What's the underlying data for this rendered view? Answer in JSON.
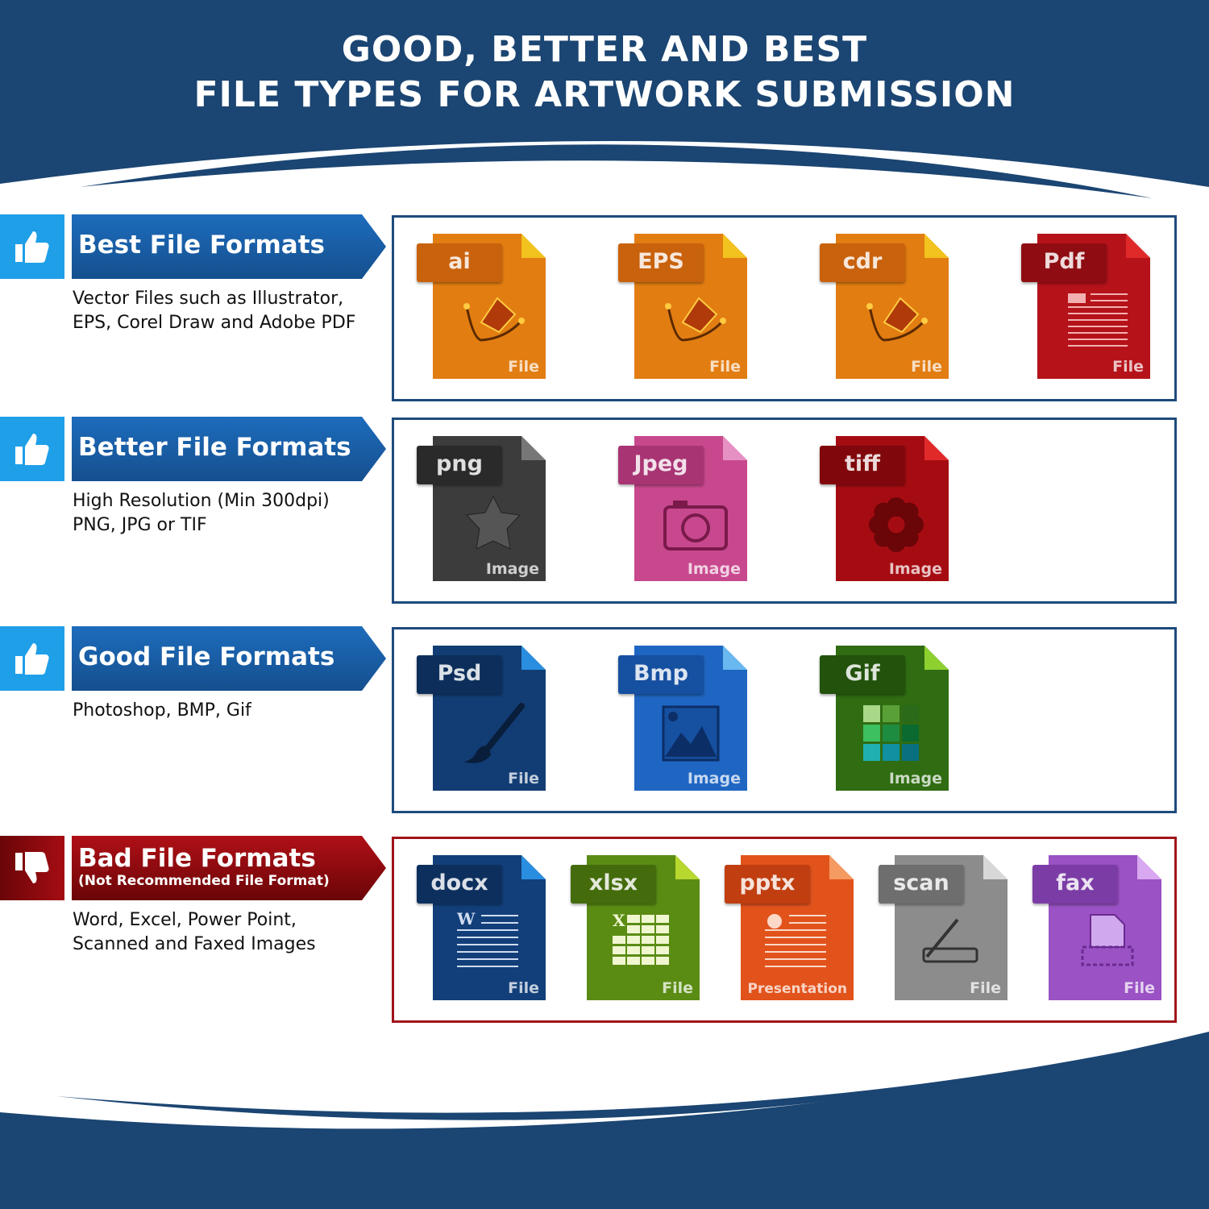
{
  "header": {
    "title_line1": "GOOD, BETTER AND BEST",
    "title_line2": "FILE TYPES FOR ARTWORK SUBMISSION"
  },
  "colors": {
    "navy": "#1b4572",
    "blue_banner": "#1a5fa8",
    "light_blue": "#1e9fe8",
    "red_banner": "#a50d12"
  },
  "sections": [
    {
      "icon": "thumbs-up-icon",
      "title": "Best File Formats",
      "description": [
        "Vector Files such as Illustrator,",
        "EPS, Corel Draw and Adobe PDF"
      ],
      "files": [
        {
          "label": "ai",
          "footer": "File",
          "glyph": "pen",
          "body": "#e27d12",
          "tag": "#c9620c",
          "fold": "#f2c21e"
        },
        {
          "label": "EPS",
          "footer": "File",
          "glyph": "pen",
          "body": "#e27d12",
          "tag": "#c9620c",
          "fold": "#f2c21e"
        },
        {
          "label": "cdr",
          "footer": "File",
          "glyph": "pen",
          "body": "#e27d12",
          "tag": "#c9620c",
          "fold": "#f2c21e"
        },
        {
          "label": "Pdf",
          "footer": "File",
          "glyph": "doc",
          "body": "#b5121a",
          "tag": "#8f0d12",
          "fold": "#e02a2a"
        }
      ]
    },
    {
      "icon": "thumbs-up-icon",
      "title": "Better File Formats",
      "description": [
        "High Resolution (Min 300dpi)",
        "PNG, JPG or TIF"
      ],
      "files": [
        {
          "label": "png",
          "footer": "Image",
          "glyph": "star",
          "body": "#3c3c3c",
          "tag": "#2a2a2a",
          "fold": "#777777"
        },
        {
          "label": "Jpeg",
          "footer": "Image",
          "glyph": "camera",
          "body": "#c8488e",
          "tag": "#a83474",
          "fold": "#e690c4"
        },
        {
          "label": "tiff",
          "footer": "Image",
          "glyph": "flower",
          "body": "#a50c12",
          "tag": "#80080c",
          "fold": "#e02a2a"
        }
      ]
    },
    {
      "icon": "thumbs-up-icon",
      "title": "Good File Formats",
      "description": [
        "Photoshop, BMP, Gif"
      ],
      "files": [
        {
          "label": "Psd",
          "footer": "File",
          "glyph": "brush",
          "body": "#123d74",
          "tag": "#0d2e5a",
          "fold": "#2a8ee0"
        },
        {
          "label": "Bmp",
          "footer": "Image",
          "glyph": "picture",
          "body": "#1f66c2",
          "tag": "#1650a0",
          "fold": "#6ab8f0"
        },
        {
          "label": "Gif",
          "footer": "Image",
          "glyph": "grid",
          "body": "#2f6c12",
          "tag": "#22520c",
          "fold": "#8ed030"
        }
      ]
    },
    {
      "icon": "thumbs-down-icon",
      "title": "Bad File Formats",
      "subtitle": "(Not Recommended File Format)",
      "description": [
        "Word, Excel, Power Point,",
        "Scanned and Faxed Images"
      ],
      "files": [
        {
          "label": "docx",
          "footer": "File",
          "glyph": "word",
          "body": "#123f7a",
          "tag": "#0d2f5e",
          "fold": "#2a8ee0"
        },
        {
          "label": "xlsx",
          "footer": "File",
          "glyph": "excel",
          "body": "#5a8c14",
          "tag": "#446c0c",
          "fold": "#b8d830"
        },
        {
          "label": "pptx",
          "footer": "Presentation",
          "glyph": "ppt",
          "body": "#e2531c",
          "tag": "#c03e10",
          "fold": "#f59a60"
        },
        {
          "label": "scan",
          "footer": "File",
          "glyph": "scanner",
          "body": "#8c8c8c",
          "tag": "#6e6e6e",
          "fold": "#d8d8d8"
        },
        {
          "label": "fax",
          "footer": "File",
          "glyph": "fax",
          "body": "#9a52c4",
          "tag": "#7c3ca6",
          "fold": "#d8a8f0"
        }
      ]
    }
  ]
}
